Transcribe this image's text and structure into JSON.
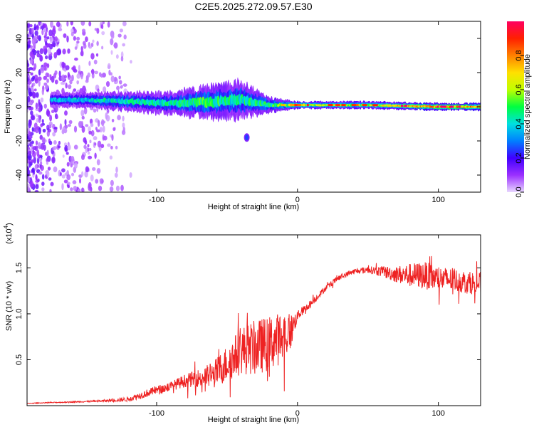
{
  "chart_data": [
    {
      "type": "heatmap",
      "title": "C2E5.2025.272.09.57.E30",
      "xlabel": "Height of straight line (km)",
      "ylabel": "Frequency (Hz)",
      "xlim": [
        -192,
        130
      ],
      "ylim": [
        -50,
        50
      ],
      "xticks": [
        -100,
        0,
        100
      ],
      "yticks": [
        -40,
        -20,
        0,
        20,
        40
      ],
      "colorbar": {
        "label": "Normalized spectral amplitude",
        "range": [
          0,
          1
        ],
        "ticks": [
          0.0,
          0.2,
          0.4,
          0.6,
          0.8
        ],
        "tick_labels": [
          "0.0",
          "0.2",
          "0.4",
          "0.6",
          "0.8"
        ],
        "colors": [
          "#e8d8ff",
          "#9b30ff",
          "#4000ff",
          "#0080ff",
          "#00e0e0",
          "#00ff40",
          "#c0ff00",
          "#ffe000",
          "#ff8000",
          "#ff2000",
          "#ff0060"
        ]
      },
      "features": {
        "noise_region_x": [
          -192,
          -118
        ],
        "band": [
          {
            "x": -175,
            "f": 4,
            "width": 4,
            "amp": 0.35
          },
          {
            "x": -150,
            "f": 4,
            "width": 4,
            "amp": 0.4
          },
          {
            "x": -120,
            "f": 3,
            "width": 5,
            "amp": 0.45
          },
          {
            "x": -90,
            "f": 2,
            "width": 6,
            "amp": 0.45
          },
          {
            "x": -60,
            "f": 3,
            "width": 9,
            "amp": 0.5
          },
          {
            "x": -40,
            "f": 4,
            "width": 10,
            "amp": 0.45
          },
          {
            "x": -20,
            "f": 1,
            "width": 4,
            "amp": 0.5
          },
          {
            "x": 0,
            "f": 1,
            "width": 2,
            "amp": 0.65
          },
          {
            "x": 50,
            "f": 1,
            "width": 2,
            "amp": 0.6
          },
          {
            "x": 100,
            "f": 0,
            "width": 2,
            "amp": 0.85
          },
          {
            "x": 130,
            "f": 0,
            "width": 2,
            "amp": 0.8
          }
        ],
        "blob": {
          "x": -36,
          "f": -18,
          "amp": 0.25
        }
      }
    },
    {
      "type": "line",
      "xlabel": "Height of straight line (km)",
      "ylabel": "SNR (10 * v/v)",
      "scale_label": "(x10",
      "scale_exponent": "4",
      "xlim": [
        -192,
        130
      ],
      "ylim": [
        0,
        18600
      ],
      "xticks": [
        -100,
        0,
        100
      ],
      "yticks": [
        5000,
        10000,
        15000
      ],
      "ytick_labels": [
        "0.5",
        "1.0",
        "1.5"
      ],
      "color": "#ee2222",
      "series": [
        {
          "name": "SNR envelope",
          "x": [
            -192,
            -160,
            -140,
            -120,
            -110,
            -100,
            -90,
            -80,
            -70,
            -60,
            -50,
            -40,
            -30,
            -20,
            -10,
            -5,
            0,
            10,
            20,
            30,
            40,
            50,
            60,
            70,
            80,
            90,
            100,
            110,
            120,
            130
          ],
          "y": [
            250,
            400,
            500,
            700,
            1200,
            1700,
            2100,
            2700,
            3000,
            3300,
            4600,
            6000,
            6300,
            6800,
            7500,
            8000,
            9800,
            11200,
            12800,
            14000,
            14600,
            14800,
            14600,
            14300,
            14200,
            14200,
            13800,
            13700,
            13400,
            13300
          ],
          "noise": [
            30,
            60,
            100,
            250,
            400,
            450,
            500,
            700,
            1000,
            1500,
            2000,
            2600,
            3000,
            3000,
            2800,
            2000,
            500,
            400,
            300,
            300,
            300,
            350,
            600,
            900,
            1300,
            1500,
            1400,
            1300,
            1200,
            1300
          ]
        }
      ]
    }
  ]
}
